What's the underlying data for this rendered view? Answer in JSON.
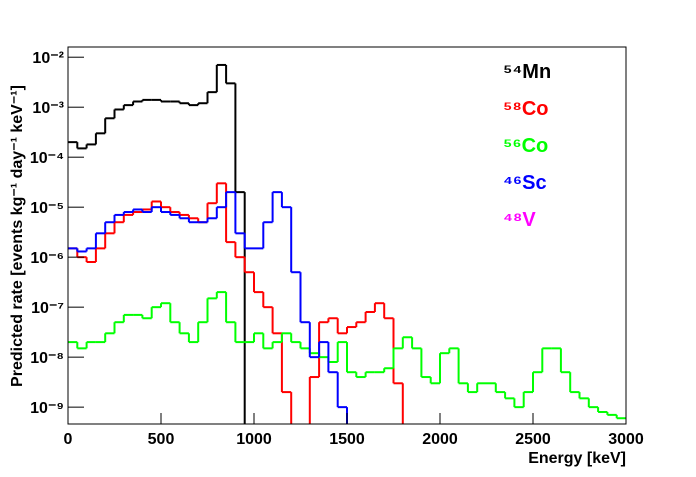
{
  "chart_data": {
    "type": "histogram",
    "xlabel": "Energy [keV]",
    "ylabel": "Predicted rate [events kg⁻¹ day⁻¹ keV⁻¹]",
    "log_y": true,
    "legend_position": "upper right",
    "xlim": [
      0,
      3000
    ],
    "ylim": [
      4.6e-10,
      0.016
    ],
    "xticks": [
      0,
      500,
      1000,
      1500,
      2000,
      2500,
      3000
    ],
    "yticks": [
      {
        "value": 1e-09,
        "label": "10⁻⁹"
      },
      {
        "value": 1e-08,
        "label": "10⁻⁸"
      },
      {
        "value": 1e-07,
        "label": "10⁻⁷"
      },
      {
        "value": 1e-06,
        "label": "10⁻⁶"
      },
      {
        "value": 1e-05,
        "label": "10⁻⁵"
      },
      {
        "value": 0.0001,
        "label": "10⁻⁴"
      },
      {
        "value": 0.001,
        "label": "10⁻³"
      },
      {
        "value": 0.01,
        "label": "10⁻²"
      }
    ],
    "bins": [
      0,
      50,
      100,
      150,
      200,
      250,
      300,
      350,
      400,
      450,
      500,
      550,
      600,
      650,
      700,
      750,
      800,
      850,
      900,
      950,
      1000,
      1050,
      1100,
      1150,
      1200,
      1250,
      1300,
      1350,
      1400,
      1450,
      1500,
      1550,
      1600,
      1650,
      1700,
      1750,
      1800,
      1850,
      1900,
      1950,
      2000,
      2050,
      2100,
      2150,
      2200,
      2250,
      2300,
      2350,
      2400,
      2450,
      2500,
      2550,
      2600,
      2650,
      2700,
      2750,
      2800,
      2850,
      2900,
      2950,
      3000
    ],
    "series": [
      {
        "name": "⁵⁴Mn",
        "color": "#000000",
        "values": [
          0.0002,
          0.00015,
          0.00018,
          0.0003,
          0.0006,
          0.0009,
          0.0011,
          0.0013,
          0.0014,
          0.0014,
          0.0013,
          0.0013,
          0.0012,
          0.0011,
          0.0012,
          0.002,
          0.007,
          0.003,
          2e-05,
          0,
          0,
          0,
          0,
          0,
          0,
          0,
          0,
          0,
          0,
          0,
          0,
          0,
          0,
          0,
          0,
          0,
          0,
          0,
          0,
          0,
          0,
          0,
          0,
          0,
          0,
          0,
          0,
          0,
          0,
          0,
          0,
          0,
          0,
          0,
          0,
          0,
          0,
          0,
          0,
          0
        ]
      },
      {
        "name": "⁵⁸Co",
        "color": "#ff0000",
        "values": [
          1.5e-06,
          1e-06,
          8e-07,
          1.5e-06,
          3e-06,
          5e-06,
          7e-06,
          8e-06,
          9e-06,
          1.3e-05,
          1e-05,
          8e-06,
          7e-06,
          6e-06,
          5e-06,
          1.2e-05,
          3e-05,
          2e-06,
          1e-06,
          5e-07,
          2e-07,
          1e-07,
          3e-08,
          2e-09,
          0,
          0,
          4e-09,
          5e-08,
          6e-08,
          3e-08,
          4e-08,
          5e-08,
          8e-08,
          1.2e-07,
          6e-08,
          3e-09,
          0,
          0,
          0,
          0,
          0,
          0,
          0,
          0,
          0,
          0,
          0,
          0,
          0,
          0,
          0,
          0,
          0,
          0,
          0,
          0,
          0,
          0,
          0,
          0
        ]
      },
      {
        "name": "⁵⁶Co",
        "color": "#00ff00",
        "values": [
          2e-08,
          1.5e-08,
          2e-08,
          2e-08,
          3e-08,
          5e-08,
          7e-08,
          7e-08,
          6e-08,
          1e-07,
          1.2e-07,
          5e-08,
          3e-08,
          2e-08,
          5e-08,
          1.5e-07,
          2e-07,
          5e-08,
          2e-08,
          2e-08,
          3e-08,
          1.5e-08,
          2e-08,
          3e-08,
          2e-08,
          1.5e-08,
          1.2e-08,
          1e-08,
          8e-09,
          2e-08,
          5e-09,
          4e-09,
          5e-09,
          5e-09,
          6e-09,
          1.5e-08,
          2.5e-08,
          1.5e-08,
          4e-09,
          3e-09,
          1.2e-08,
          1.5e-08,
          3e-09,
          2e-09,
          3e-09,
          3e-09,
          2e-09,
          1.5e-09,
          1e-09,
          2e-09,
          5e-09,
          1.5e-08,
          1.5e-08,
          5e-09,
          2e-09,
          1.5e-09,
          1e-09,
          8e-10,
          7e-10,
          6e-10
        ]
      },
      {
        "name": "⁴⁶Sc",
        "color": "#0000ff",
        "values": [
          1.5e-06,
          1.3e-06,
          1.5e-06,
          3e-06,
          5e-06,
          7e-06,
          8e-06,
          9e-06,
          8e-06,
          1e-05,
          8e-06,
          7e-06,
          6e-06,
          5e-06,
          5e-06,
          6e-06,
          1e-05,
          2e-05,
          3e-06,
          1.5e-06,
          1.5e-06,
          5e-06,
          2e-05,
          1e-05,
          5e-07,
          5e-08,
          1e-08,
          2e-08,
          5e-09,
          1e-09,
          0,
          0,
          0,
          0,
          0,
          0,
          0,
          0,
          0,
          0,
          0,
          0,
          0,
          0,
          0,
          0,
          0,
          0,
          0,
          0,
          0,
          0,
          0,
          0,
          0,
          0,
          0,
          0,
          0,
          0
        ]
      },
      {
        "name": "⁴⁸V",
        "color": "#ff00ff",
        "values": [
          0,
          0,
          0,
          0,
          0,
          0,
          0,
          0,
          0,
          0,
          0,
          0,
          0,
          0,
          0,
          0,
          0,
          0,
          0,
          0,
          0,
          0,
          0,
          0,
          0,
          0,
          0,
          0,
          0,
          0,
          0,
          0,
          0,
          0,
          0,
          0,
          0,
          0,
          0,
          0,
          0,
          0,
          0,
          0,
          0,
          0,
          0,
          0,
          0,
          0,
          0,
          0,
          0,
          0,
          0,
          0,
          0,
          0,
          0,
          0
        ]
      }
    ]
  }
}
